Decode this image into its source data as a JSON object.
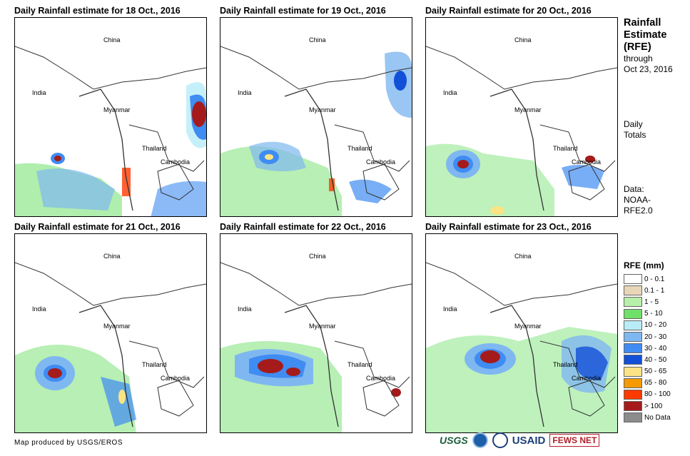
{
  "panels": [
    {
      "title": "Daily Rainfall estimate for 18 Oct., 2016"
    },
    {
      "title": "Daily Rainfall estimate for 19 Oct., 2016"
    },
    {
      "title": "Daily Rainfall estimate for 20 Oct., 2016"
    },
    {
      "title": "Daily Rainfall estimate for 21 Oct., 2016"
    },
    {
      "title": "Daily Rainfall estimate for 22 Oct., 2016"
    },
    {
      "title": "Daily Rainfall estimate for 23 Oct., 2016"
    }
  ],
  "map_labels": {
    "china": "China",
    "india": "India",
    "myanmar": "Myanmar",
    "thailand": "Thailand",
    "cambodia": "Cambodia"
  },
  "sidebar": {
    "title_line1": "Rainfall",
    "title_line2": "Estimate",
    "title_line3": "(RFE)",
    "through": "through",
    "date": "Oct 23, 2016",
    "totals_line1": "Daily",
    "totals_line2": "Totals",
    "data_line1": "Data:",
    "data_line2": "NOAA-",
    "data_line3": "RFE2.0"
  },
  "legend": {
    "title": "RFE (mm)",
    "items": [
      {
        "label": "0 - 0.1",
        "color": "#ffffff"
      },
      {
        "label": "0.1 - 1",
        "color": "#e9d6b8"
      },
      {
        "label": "1 - 5",
        "color": "#b7f0a8"
      },
      {
        "label": "5 - 10",
        "color": "#6fe06a"
      },
      {
        "label": "10 - 20",
        "color": "#b8ecf7"
      },
      {
        "label": "20 - 30",
        "color": "#7fb8f0"
      },
      {
        "label": "30 - 40",
        "color": "#3f8cf2"
      },
      {
        "label": "40 - 50",
        "color": "#1350d8"
      },
      {
        "label": "50 - 65",
        "color": "#fce383"
      },
      {
        "label": "65 - 80",
        "color": "#f59a00"
      },
      {
        "label": "80 - 100",
        "color": "#ff3a00"
      },
      {
        "label": "> 100",
        "color": "#a51b1b"
      },
      {
        "label": "No Data",
        "color": "#8c8c8c"
      }
    ]
  },
  "footer": {
    "credit": "Map produced by USGS/EROS"
  },
  "logos": {
    "usgs": "USGS",
    "usaid": "USAID",
    "fews": "FEWS NET"
  }
}
